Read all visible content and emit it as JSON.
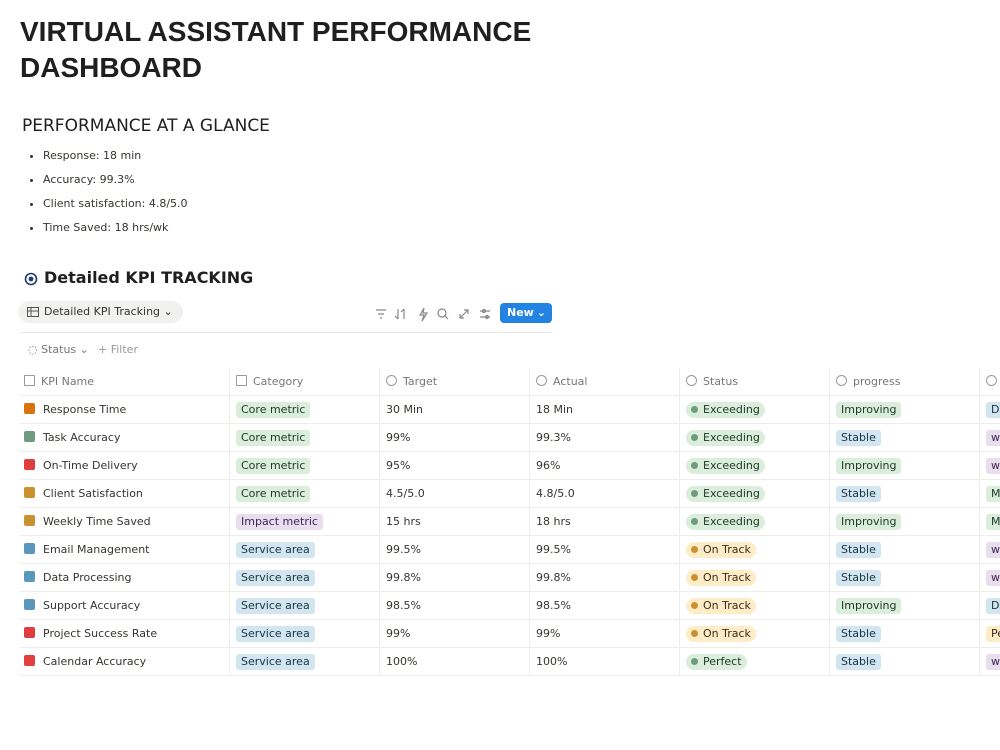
{
  "page": {
    "title": "VIRTUAL ASSISTANT PERFORMANCE DASHBOARD",
    "glance": {
      "heading": "PERFORMANCE AT A GLANCE",
      "items": [
        "Response: 18 min",
        "Accuracy: 99.3%",
        "Client satisfaction: 4.8/5.0",
        "Time Saved: 18 hrs/wk"
      ]
    },
    "section_heading": "Detailed KPI TRACKING",
    "view_tab": "Detailed KPI Tracking",
    "new_button": "New",
    "filters": [
      "Status",
      "Filter"
    ],
    "table": {
      "columns": [
        "KPI Name",
        "Category",
        "Target",
        "Actual",
        "Status",
        "progress"
      ],
      "rows": [
        {
          "name": "Response Time",
          "icon": "orange",
          "category": {
            "text": "Core metric",
            "color": "green"
          },
          "target": "30 Min",
          "actual": "18 Min",
          "status": {
            "text": "Exceeding",
            "color": "green"
          },
          "progress": {
            "text": "Improving",
            "color": "green"
          },
          "extra": {
            "text": "Da",
            "color": "blue"
          }
        },
        {
          "name": "Task Accuracy",
          "icon": "green",
          "category": {
            "text": "Core metric",
            "color": "green"
          },
          "target": "99%",
          "actual": "99.3%",
          "status": {
            "text": "Exceeding",
            "color": "green"
          },
          "progress": {
            "text": "Stable",
            "color": "blue"
          },
          "extra": {
            "text": "we",
            "color": "purple"
          }
        },
        {
          "name": "On-Time Delivery",
          "icon": "red",
          "category": {
            "text": "Core metric",
            "color": "green"
          },
          "target": "95%",
          "actual": "96%",
          "status": {
            "text": "Exceeding",
            "color": "green"
          },
          "progress": {
            "text": "Improving",
            "color": "green"
          },
          "extra": {
            "text": "we",
            "color": "purple"
          }
        },
        {
          "name": "Client Satisfaction",
          "icon": "yellow",
          "category": {
            "text": "Core metric",
            "color": "green"
          },
          "target": "4.5/5.0",
          "actual": "4.8/5.0",
          "status": {
            "text": "Exceeding",
            "color": "green"
          },
          "progress": {
            "text": "Stable",
            "color": "blue"
          },
          "extra": {
            "text": "M",
            "color": "green"
          }
        },
        {
          "name": "Weekly Time Saved",
          "icon": "yellow",
          "category": {
            "text": "Impact metric",
            "color": "purple"
          },
          "target": "15 hrs",
          "actual": "18 hrs",
          "status": {
            "text": "Exceeding",
            "color": "green"
          },
          "progress": {
            "text": "Improving",
            "color": "green"
          },
          "extra": {
            "text": "M",
            "color": "green"
          }
        },
        {
          "name": "Email Management",
          "icon": "blue",
          "category": {
            "text": "Service area",
            "color": "blue"
          },
          "target": "99.5%",
          "actual": "99.5%",
          "status": {
            "text": "On Track",
            "color": "yellow"
          },
          "progress": {
            "text": "Stable",
            "color": "blue"
          },
          "extra": {
            "text": "we",
            "color": "purple"
          }
        },
        {
          "name": "Data Processing",
          "icon": "blue",
          "category": {
            "text": "Service area",
            "color": "blue"
          },
          "target": "99.8%",
          "actual": "99.8%",
          "status": {
            "text": "On Track",
            "color": "yellow"
          },
          "progress": {
            "text": "Stable",
            "color": "blue"
          },
          "extra": {
            "text": "we",
            "color": "purple"
          }
        },
        {
          "name": "Support Accuracy",
          "icon": "blue",
          "category": {
            "text": "Service area",
            "color": "blue"
          },
          "target": "98.5%",
          "actual": "98.5%",
          "status": {
            "text": "On Track",
            "color": "yellow"
          },
          "progress": {
            "text": "Improving",
            "color": "green"
          },
          "extra": {
            "text": "Da",
            "color": "blue"
          }
        },
        {
          "name": "Project Success Rate",
          "icon": "red",
          "category": {
            "text": "Service area",
            "color": "blue"
          },
          "target": "99%",
          "actual": "99%",
          "status": {
            "text": "On Track",
            "color": "yellow"
          },
          "progress": {
            "text": "Stable",
            "color": "blue"
          },
          "extra": {
            "text": "Pe",
            "color": "yellow"
          }
        },
        {
          "name": "Calendar Accuracy",
          "icon": "red",
          "category": {
            "text": "Service area",
            "color": "blue"
          },
          "target": "100%",
          "actual": "100%",
          "status": {
            "text": "Perfect",
            "color": "green"
          },
          "progress": {
            "text": "Stable",
            "color": "blue"
          },
          "extra": {
            "text": "we",
            "color": "purple"
          }
        }
      ]
    }
  }
}
